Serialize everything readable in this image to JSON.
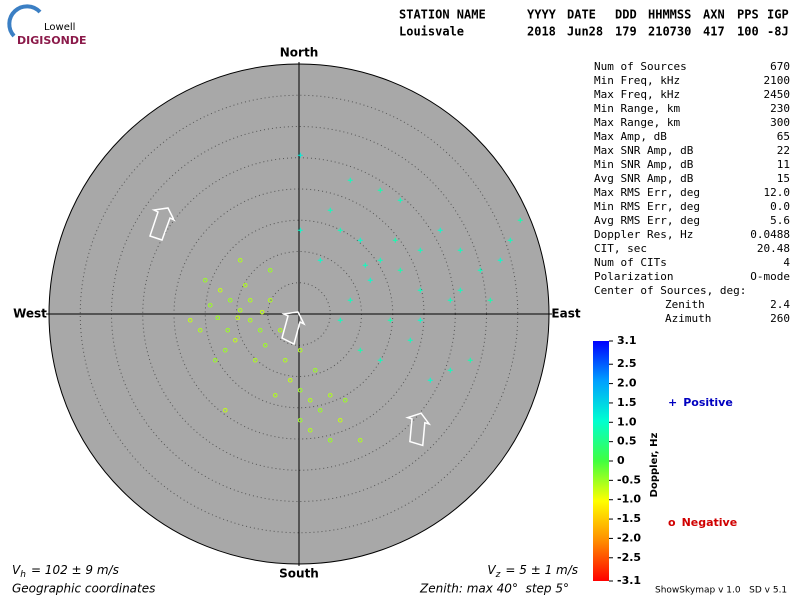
{
  "logo": {
    "top": "Lowell",
    "bottom": "DIGISONDE"
  },
  "header": {
    "columns": [
      {
        "label": "STATION NAME",
        "value": "Louisvale"
      },
      {
        "label": "YYYY",
        "value": "2018"
      },
      {
        "label": "DATE",
        "value": "Jun28"
      },
      {
        "label": "DDD",
        "value": "179"
      },
      {
        "label": "HHMMSS",
        "value": "210730"
      },
      {
        "label": "AXN",
        "value": "417"
      },
      {
        "label": "PPS",
        "value": "100"
      },
      {
        "label": "IGP",
        "value": "-8J"
      }
    ]
  },
  "stats": {
    "rows": [
      [
        "Num of Sources",
        "670"
      ],
      [
        "Min Freq, kHz",
        "2100"
      ],
      [
        "Max Freq, kHz",
        "2450"
      ],
      [
        "Min Range, km",
        "230"
      ],
      [
        "Max Range, km",
        "300"
      ],
      [
        "Max Amp, dB",
        "65"
      ],
      [
        "Max SNR Amp, dB",
        "22"
      ],
      [
        "Min SNR Amp, dB",
        "11"
      ],
      [
        "Avg SNR Amp, dB",
        "15"
      ],
      [
        "Max RMS Err, deg",
        "12.0"
      ],
      [
        "Min RMS Err, deg",
        "0.0"
      ],
      [
        "Avg RMS Err, deg",
        "5.6"
      ],
      [
        "Doppler Res, Hz",
        "0.0488"
      ],
      [
        "CIT, sec",
        "20.48"
      ],
      [
        "Num of CITs",
        "4"
      ],
      [
        "Polarization",
        "O-mode"
      ]
    ],
    "center_heading": "Center of Sources, deg:",
    "center": [
      [
        "Zenith",
        "2.4"
      ],
      [
        "Azimuth",
        "260"
      ]
    ]
  },
  "chart_data": {
    "type": "skymap",
    "directions": {
      "north": "North",
      "east": "East",
      "south": "South",
      "west": "West"
    },
    "rlim": [
      0,
      40
    ],
    "rticks": [
      5,
      10,
      15,
      20,
      25,
      30,
      35
    ],
    "colorbar": {
      "title": "Doppler, Hz",
      "clim": [
        -3.1,
        3.1
      ],
      "colormap": [
        "#ff0000",
        "#ff8c00",
        "#ffff00",
        "#40ff40",
        "#00ffd0",
        "#00a0ff",
        "#0000ff"
      ],
      "ticks": [
        3.1,
        2.5,
        {
          "value": 2,
          "label": "2.0"
        },
        1.5,
        {
          "value": 1,
          "label": "1.0"
        },
        0.5,
        0,
        -0.5,
        {
          "value": -1,
          "label": "-1.0"
        },
        -1.5,
        {
          "value": -2,
          "label": "-2.0"
        },
        -2.5,
        -3.1
      ]
    },
    "series": [
      {
        "name": "Positive",
        "symbol": "+",
        "color": "#0000c0",
        "x": [
          13.0,
          9.8,
          6.6,
          16.2,
          19.4,
          11.4,
          8.2,
          14.6,
          17.8,
          21.0,
          24.2,
          27.4,
          29.0,
          32.2,
          33.8,
          35.4,
          25.8,
          22.6,
          16.2,
          13.0,
          5.0,
          3.4,
          6.6,
          9.8,
          13.0,
          19.4,
          24.2,
          30.6,
          25.8,
          0.2,
          8.2,
          0.2,
          19.4,
          15.4,
          10.6
        ],
        "y": [
          8.6,
          11.8,
          13.4,
          7.0,
          3.8,
          5.4,
          2.2,
          -1.0,
          -4.2,
          -10.6,
          -9.0,
          -7.4,
          7.0,
          8.6,
          11.8,
          15.0,
          10.2,
          13.4,
          18.2,
          19.8,
          16.6,
          8.6,
          -1.0,
          -5.8,
          -7.4,
          -1.0,
          2.2,
          2.2,
          3.8,
          25.4,
          21.4,
          13.4,
          10.2,
          11.8,
          7.8
        ],
        "values": [
          0.9,
          1.0,
          0.9,
          0.8,
          0.9,
          1.0,
          0.9,
          0.8,
          0.9,
          1.0,
          0.9,
          0.8,
          0.9,
          1.0,
          0.9,
          0.8,
          0.9,
          1.0,
          0.9,
          0.8,
          0.9,
          1.0,
          0.9,
          0.8,
          0.9,
          1.0,
          0.9,
          0.8,
          0.9,
          1.2,
          0.9,
          1.0,
          0.9,
          0.8,
          0.9
        ]
      },
      {
        "name": "Negative",
        "symbol": "o",
        "color": "#d00000",
        "x": [
          -9.4,
          -11.0,
          -7.8,
          -12.6,
          -6.2,
          -8.6,
          -14.2,
          -4.6,
          -10.2,
          -11.8,
          -7.0,
          -5.4,
          -3.0,
          -1.4,
          0.2,
          1.8,
          3.4,
          5.0,
          6.6,
          0.2,
          -2.2,
          -13.4,
          -15.8,
          -17.4,
          -15.0,
          -9.4,
          -4.6,
          -7.8,
          -9.8,
          -11.4,
          0.2,
          2.6,
          -3.8,
          -11.8,
          7.4,
          9.8,
          5.0,
          1.8,
          -5.9,
          -13.0
        ],
        "y": [
          0.6,
          2.2,
          -1.0,
          3.8,
          -2.6,
          4.6,
          1.4,
          2.2,
          -4.2,
          -5.8,
          -7.4,
          -5.0,
          -2.6,
          -10.6,
          -12.2,
          -13.8,
          -15.4,
          -13.0,
          -17.0,
          -17.0,
          -7.4,
          -7.4,
          -2.6,
          -1.0,
          5.4,
          8.6,
          7.0,
          2.2,
          -0.6,
          -2.6,
          -5.8,
          -9.0,
          -13.0,
          -15.4,
          -13.8,
          -20.2,
          -20.2,
          -18.6,
          0.3,
          -0.6
        ],
        "values": [
          -0.6,
          -0.5,
          -0.6,
          -0.7,
          -0.5,
          -0.6,
          -0.5,
          -0.6,
          -0.7,
          -0.5,
          -0.6,
          -0.5,
          -0.6,
          -0.7,
          -0.5,
          -0.6,
          -0.5,
          -0.6,
          -0.7,
          -0.5,
          -0.6,
          -0.5,
          -0.6,
          -0.7,
          -0.5,
          -0.6,
          -0.5,
          -0.6,
          -0.7,
          -0.5,
          -0.6,
          -0.5,
          -0.6,
          -0.7,
          -0.5,
          -0.6,
          -0.5,
          -0.6,
          -0.7,
          -0.5
        ]
      }
    ]
  },
  "footer": {
    "vh": {
      "symbol": "V",
      "sub": "h",
      "text": "= 102 ± 9 m/s"
    },
    "vz": {
      "symbol": "V",
      "sub": "z",
      "text": "= 5 ± 1 m/s"
    },
    "coordinates": "Geographic coordinates",
    "zenith": "Zenith: max 40°  step 5°",
    "version": "ShowSkymap v 1.0   SD v 5.1"
  }
}
